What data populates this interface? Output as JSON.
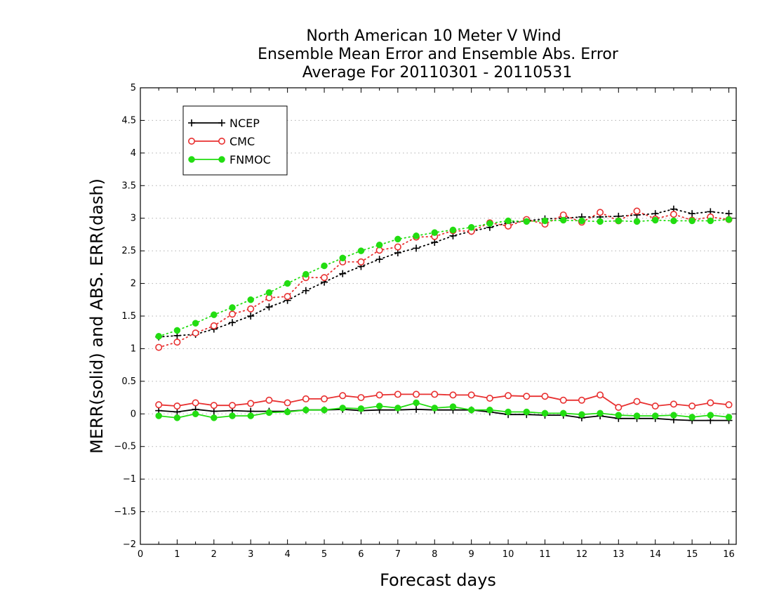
{
  "chart_data": {
    "type": "line",
    "title_lines": [
      "North American 10 Meter V Wind",
      "Ensemble Mean Error and Ensemble Abs. Error",
      "Average For 20110301 - 20110531"
    ],
    "xlabel": "Forecast days",
    "ylabel": "MERR(solid) and ABS. ERR(dash)",
    "xlim": [
      0,
      16.2
    ],
    "ylim": [
      -2,
      5
    ],
    "xticks": [
      0,
      1,
      2,
      3,
      4,
      5,
      6,
      7,
      8,
      9,
      10,
      11,
      12,
      13,
      14,
      15,
      16
    ],
    "yticks": [
      -2,
      -1.5,
      -1,
      -0.5,
      0,
      0.5,
      1,
      1.5,
      2,
      2.5,
      3,
      3.5,
      4,
      4.5,
      5
    ],
    "grid": "horizontal dotted",
    "legend_position": "top-left",
    "x": [
      0.5,
      1,
      1.5,
      2,
      2.5,
      3,
      3.5,
      4,
      4.5,
      5,
      5.5,
      6,
      6.5,
      7,
      7.5,
      8,
      8.5,
      9,
      9.5,
      10,
      10.5,
      11,
      11.5,
      12,
      12.5,
      13,
      13.5,
      14,
      14.5,
      15,
      15.5,
      16
    ],
    "series": [
      {
        "name": "NCEP",
        "color": "#000000",
        "marker": "plus",
        "mean_error": [
          0.05,
          0.03,
          0.07,
          0.04,
          0.05,
          0.04,
          0.04,
          0.04,
          0.06,
          0.06,
          0.07,
          0.05,
          0.06,
          0.06,
          0.07,
          0.06,
          0.06,
          0.06,
          0.03,
          -0.01,
          -0.01,
          -0.02,
          -0.02,
          -0.06,
          -0.03,
          -0.07,
          -0.07,
          -0.07,
          -0.09,
          -0.1,
          -0.1,
          -0.1
        ],
        "abs_error": [
          1.18,
          1.2,
          1.22,
          1.3,
          1.4,
          1.5,
          1.64,
          1.74,
          1.89,
          2.02,
          2.15,
          2.26,
          2.37,
          2.47,
          2.54,
          2.63,
          2.73,
          2.8,
          2.86,
          2.93,
          2.96,
          2.99,
          3.0,
          3.02,
          3.02,
          3.03,
          3.05,
          3.07,
          3.14,
          3.07,
          3.1,
          3.07
        ]
      },
      {
        "name": "CMC",
        "color": "#e83030",
        "marker": "open-circle",
        "mean_error": [
          0.14,
          0.12,
          0.17,
          0.13,
          0.13,
          0.16,
          0.21,
          0.17,
          0.23,
          0.23,
          0.28,
          0.25,
          0.29,
          0.3,
          0.3,
          0.3,
          0.29,
          0.29,
          0.24,
          0.28,
          0.27,
          0.27,
          0.21,
          0.21,
          0.29,
          0.1,
          0.19,
          0.12,
          0.15,
          0.12,
          0.17,
          0.14
        ],
        "abs_error": [
          1.02,
          1.1,
          1.24,
          1.35,
          1.53,
          1.61,
          1.78,
          1.8,
          2.09,
          2.09,
          2.33,
          2.33,
          2.51,
          2.56,
          2.71,
          2.72,
          2.81,
          2.8,
          2.93,
          2.88,
          2.98,
          2.91,
          3.05,
          2.94,
          3.09,
          2.96,
          3.11,
          2.99,
          3.06,
          2.97,
          3.02,
          2.98
        ]
      },
      {
        "name": "FNMOC",
        "color": "#22dd11",
        "marker": "filled-circle",
        "mean_error": [
          -0.03,
          -0.06,
          0.0,
          -0.06,
          -0.03,
          -0.03,
          0.02,
          0.03,
          0.06,
          0.06,
          0.09,
          0.08,
          0.12,
          0.09,
          0.17,
          0.09,
          0.11,
          0.06,
          0.06,
          0.03,
          0.03,
          0.01,
          0.01,
          -0.01,
          0.01,
          -0.02,
          -0.03,
          -0.03,
          -0.02,
          -0.05,
          -0.02,
          -0.05
        ],
        "abs_error": [
          1.19,
          1.28,
          1.39,
          1.52,
          1.63,
          1.75,
          1.86,
          2.0,
          2.14,
          2.27,
          2.39,
          2.5,
          2.59,
          2.68,
          2.73,
          2.78,
          2.82,
          2.86,
          2.92,
          2.96,
          2.95,
          2.96,
          2.97,
          2.96,
          2.95,
          2.96,
          2.95,
          2.97,
          2.96,
          2.96,
          2.96,
          2.98
        ]
      }
    ]
  }
}
